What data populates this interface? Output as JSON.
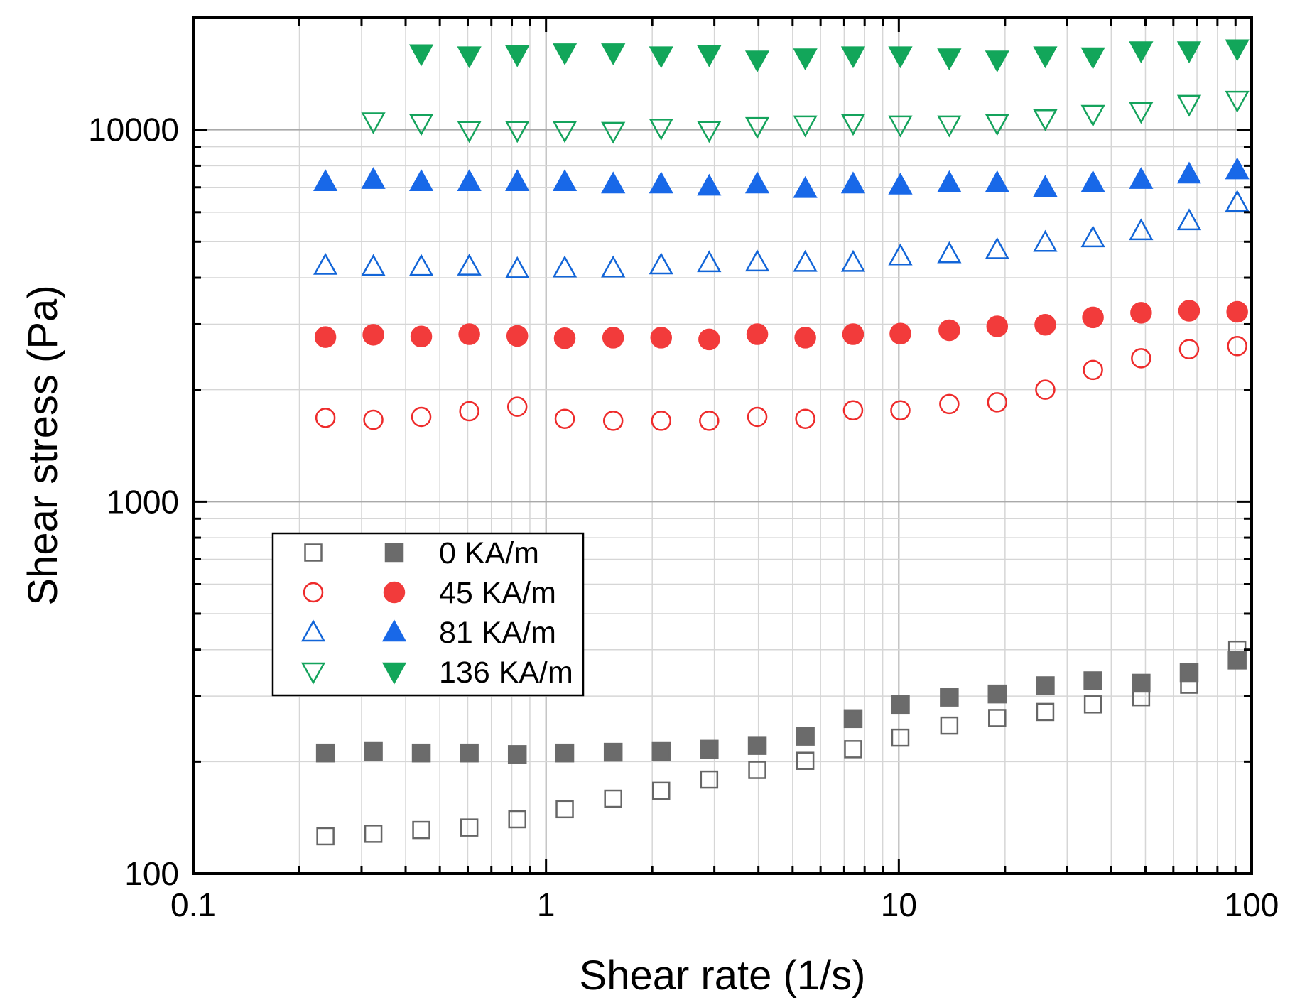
{
  "chart_data": {
    "type": "scatter",
    "title": "",
    "xlabel": "Shear rate (1/s)",
    "ylabel": "Shear stress (Pa)",
    "xscale": "log",
    "yscale": "log",
    "xlim": [
      0.1,
      100
    ],
    "ylim": [
      100,
      20000
    ],
    "x_ticks": [
      0.1,
      1,
      10,
      100
    ],
    "x_tick_labels": [
      "0.1",
      "1",
      "10",
      "100"
    ],
    "y_ticks": [
      100,
      1000,
      10000
    ],
    "y_tick_labels": [
      "100",
      "1000",
      "10000"
    ],
    "grid": true,
    "legend_position": "lower-left",
    "x": [
      0.237,
      0.324,
      0.443,
      0.606,
      0.829,
      1.13,
      1.55,
      2.12,
      2.9,
      3.97,
      5.43,
      7.42,
      10.1,
      13.9,
      19.0,
      26.0,
      35.5,
      48.6,
      66.5,
      91.0
    ],
    "series": [
      {
        "name": "0 KA/m",
        "group": 0,
        "filled": false,
        "marker": "square",
        "color": "#666666",
        "values": [
          126,
          128,
          131,
          133,
          140,
          149,
          159,
          167,
          179,
          190,
          201,
          216,
          232,
          250,
          262,
          272,
          285,
          298,
          322,
          400
        ]
      },
      {
        "name": "0 KA/m",
        "group": 0,
        "filled": true,
        "marker": "square",
        "color": "#6b6b6b",
        "values": [
          211,
          213,
          211,
          211,
          209,
          211,
          212,
          213,
          216,
          221,
          234,
          261,
          285,
          298,
          304,
          320,
          330,
          325,
          347,
          375
        ]
      },
      {
        "name": "45 KA/m",
        "group": 1,
        "filled": false,
        "marker": "circle",
        "color": "#ee2b2b",
        "values": [
          1680,
          1660,
          1690,
          1750,
          1800,
          1670,
          1650,
          1650,
          1650,
          1690,
          1670,
          1760,
          1760,
          1830,
          1850,
          2000,
          2260,
          2430,
          2570,
          2620
        ]
      },
      {
        "name": "45 KA/m",
        "group": 1,
        "filled": true,
        "marker": "circle",
        "color": "#f23b3b",
        "values": [
          2770,
          2810,
          2780,
          2820,
          2790,
          2750,
          2760,
          2760,
          2730,
          2820,
          2760,
          2820,
          2830,
          2890,
          2960,
          2990,
          3130,
          3220,
          3260,
          3240
        ]
      },
      {
        "name": "81 KA/m",
        "group": 2,
        "filled": false,
        "marker": "triangle-up",
        "color": "#1265d8",
        "values": [
          4320,
          4290,
          4290,
          4300,
          4230,
          4250,
          4250,
          4330,
          4390,
          4410,
          4400,
          4400,
          4580,
          4640,
          4760,
          4980,
          5120,
          5350,
          5690,
          6380
        ]
      },
      {
        "name": "81 KA/m",
        "group": 2,
        "filled": true,
        "marker": "triangle-up",
        "color": "#1868e8",
        "values": [
          7250,
          7350,
          7250,
          7250,
          7250,
          7250,
          7150,
          7150,
          7050,
          7150,
          6950,
          7150,
          7100,
          7200,
          7200,
          7000,
          7200,
          7350,
          7600,
          7800
        ]
      },
      {
        "name": "136 KA/m",
        "group": 3,
        "filled": false,
        "marker": "triangle-down",
        "color": "#14a35c",
        "values": [
          10500,
          10400,
          9950,
          9950,
          9950,
          9900,
          10100,
          9950,
          10200,
          10300,
          10400,
          10300,
          10300,
          10400,
          10700,
          11000,
          11200,
          11700,
          12000
        ]
      },
      {
        "name": "136 KA/m",
        "group": 3,
        "filled": true,
        "marker": "triangle-down",
        "color": "#12a65a",
        "values": [
          16000,
          15800,
          15900,
          16100,
          16100,
          15800,
          15900,
          15400,
          15600,
          15800,
          15800,
          15600,
          15400,
          15800,
          15700,
          16300,
          16300,
          16500
        ]
      }
    ],
    "series_x_start": [
      0,
      0,
      0,
      0,
      0,
      0,
      1,
      2
    ],
    "legend": [
      {
        "label": "0 KA/m",
        "color": "#6b6b6b",
        "marker": "square"
      },
      {
        "label": "45 KA/m",
        "color": "#f23b3b",
        "marker": "circle"
      },
      {
        "label": "81 KA/m",
        "color": "#1868e8",
        "marker": "triangle-up"
      },
      {
        "label": "136 KA/m",
        "color": "#12a65a",
        "marker": "triangle-down"
      }
    ]
  }
}
